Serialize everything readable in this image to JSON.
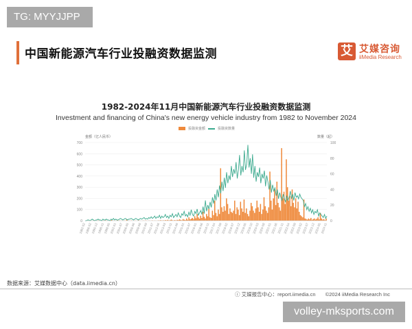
{
  "watermarks": {
    "top": "TG: MYYJJPP",
    "bottom": "volley-mksports.com"
  },
  "header": {
    "title": "中国新能源汽车行业投融资数据监测",
    "accent_color": "#e0703a"
  },
  "logo": {
    "glyph": "艾",
    "cn": "艾媒咨询",
    "en": "iiMedia Research",
    "color": "#d85a34"
  },
  "chart_data": {
    "type": "bar+line",
    "title": "1982-2024年11月中国新能源汽车行业投融资数据监测",
    "subtitle": "Investment and financing of China's  new energy vehicle industry from 1982 to November 2024",
    "legend": [
      {
        "name": "投融资金额",
        "type": "bar",
        "color": "#ef8a3c"
      },
      {
        "name": "投融资数量",
        "type": "line",
        "color": "#3aa98d"
      }
    ],
    "left_axis": {
      "label": "金额（亿人民币）",
      "ticks": [
        0,
        100,
        200,
        300,
        400,
        500,
        600,
        700
      ],
      "ylim": [
        0,
        700
      ]
    },
    "right_axis": {
      "label": "数量（起）",
      "ticks": [
        0,
        20,
        40,
        60,
        80,
        100
      ],
      "ylim": [
        0,
        100
      ]
    },
    "x_tick_labels": [
      "1982-02",
      "1986-02",
      "1990-12",
      "1996-11",
      "1998-05",
      "2002-01",
      "2004-07",
      "2006-05",
      "2008-06",
      "2009-08",
      "2010-09",
      "2011-07",
      "2012-06",
      "2013-03",
      "2013-11",
      "2014-06",
      "2015-01",
      "2015-07",
      "2016-01",
      "2016-06",
      "2016-11",
      "2017-04",
      "2017-09",
      "2018-02",
      "2018-07",
      "2018-12",
      "2019-05",
      "2019-10",
      "2020-03",
      "2020-08",
      "2021-01",
      "2021-06",
      "2021-11",
      "2022-04",
      "2022-09",
      "2023-02",
      "2023-07",
      "2023-12",
      "2024-05",
      "2024-11"
    ],
    "series": [
      {
        "name": "投融资金额",
        "axis": "left",
        "unit": "亿人民币",
        "values": [
          0,
          0,
          1,
          0,
          2,
          0,
          0,
          5,
          0,
          1,
          0,
          3,
          0,
          0,
          0,
          2,
          0,
          4,
          0,
          0,
          1,
          0,
          6,
          0,
          2,
          0,
          0,
          8,
          0,
          3,
          0,
          1,
          0,
          2,
          0,
          12,
          0,
          1,
          0,
          3,
          0,
          0,
          2,
          0,
          0,
          4,
          1,
          0,
          0,
          2,
          0,
          3,
          1,
          0,
          2,
          0,
          1,
          3,
          0,
          2,
          0,
          1,
          3,
          2,
          5,
          1,
          4,
          2,
          6,
          3,
          8,
          2,
          5,
          10,
          4,
          3,
          6,
          2,
          8,
          5,
          12,
          7,
          4,
          15,
          9,
          6,
          20,
          8,
          30,
          12,
          18,
          25,
          15,
          40,
          22,
          60,
          30,
          18,
          45,
          25,
          80,
          35,
          20,
          60,
          40,
          110,
          30,
          25,
          90,
          50,
          180,
          70,
          40,
          100,
          60,
          470,
          120,
          80,
          130,
          90,
          200,
          150,
          60,
          110,
          80,
          70,
          90,
          180,
          60,
          120,
          100,
          50,
          170,
          110,
          80,
          190,
          70,
          110,
          60,
          40,
          90,
          160,
          130,
          90,
          70,
          110,
          180,
          120,
          80,
          150,
          60,
          100,
          210,
          130,
          90,
          70,
          120,
          440,
          180,
          100,
          200,
          280,
          140,
          350,
          160,
          120,
          90,
          650,
          200,
          260,
          150,
          550,
          300,
          180,
          220,
          130,
          280,
          160,
          120,
          200,
          110,
          170,
          80,
          50,
          40,
          30,
          190,
          20,
          15,
          10,
          20,
          12,
          25,
          8,
          15,
          20,
          10,
          18,
          30,
          12,
          70,
          20,
          10,
          15,
          5,
          20
        ],
        "peak": {
          "approx_date": "2021",
          "value": 650
        }
      },
      {
        "name": "投融资数量",
        "axis": "right",
        "unit": "起",
        "values": [
          0,
          0,
          1,
          1,
          0,
          1,
          2,
          1,
          0,
          1,
          1,
          2,
          1,
          1,
          0,
          2,
          1,
          1,
          2,
          1,
          1,
          0,
          2,
          1,
          3,
          1,
          2,
          1,
          1,
          2,
          3,
          2,
          1,
          2,
          3,
          2,
          1,
          2,
          2,
          3,
          2,
          1,
          2,
          3,
          2,
          1,
          2,
          3,
          2,
          3,
          4,
          2,
          3,
          2,
          4,
          3,
          5,
          3,
          4,
          6,
          3,
          5,
          4,
          7,
          3,
          6,
          4,
          5,
          8,
          4,
          6,
          3,
          7,
          5,
          9,
          4,
          6,
          8,
          5,
          10,
          6,
          4,
          9,
          7,
          12,
          6,
          8,
          5,
          11,
          7,
          14,
          8,
          6,
          12,
          9,
          15,
          7,
          10,
          13,
          8,
          18,
          9,
          26,
          12,
          20,
          15,
          24,
          17,
          30,
          22,
          34,
          26,
          40,
          30,
          45,
          35,
          50,
          38,
          55,
          42,
          62,
          48,
          58,
          52,
          70,
          56,
          66,
          60,
          75,
          54,
          65,
          84,
          58,
          70,
          62,
          90,
          65,
          72,
          97,
          68,
          80,
          60,
          85,
          55,
          70,
          50,
          62,
          56,
          68,
          48,
          60,
          54,
          64,
          44,
          58,
          50,
          40,
          52,
          36,
          46,
          38,
          42,
          32,
          40,
          28,
          36,
          30,
          26,
          34,
          28,
          24,
          32,
          26,
          30,
          38,
          28,
          34,
          26,
          36,
          30,
          32,
          28,
          34,
          30,
          28,
          26,
          18,
          22,
          14,
          18,
          12,
          16,
          10,
          14,
          8,
          12,
          10,
          14,
          6,
          10,
          8,
          6,
          4,
          8,
          3,
          6
        ]
      }
    ],
    "grid": true,
    "legend_position": "top-center"
  },
  "footer": {
    "source": "数据来源：艾媒数据中心（data.iimedia.cn）",
    "report_center": "艾媒报告中心：report.iimedia.cn",
    "copyright": "©2024  iiMedia Research  Inc"
  }
}
